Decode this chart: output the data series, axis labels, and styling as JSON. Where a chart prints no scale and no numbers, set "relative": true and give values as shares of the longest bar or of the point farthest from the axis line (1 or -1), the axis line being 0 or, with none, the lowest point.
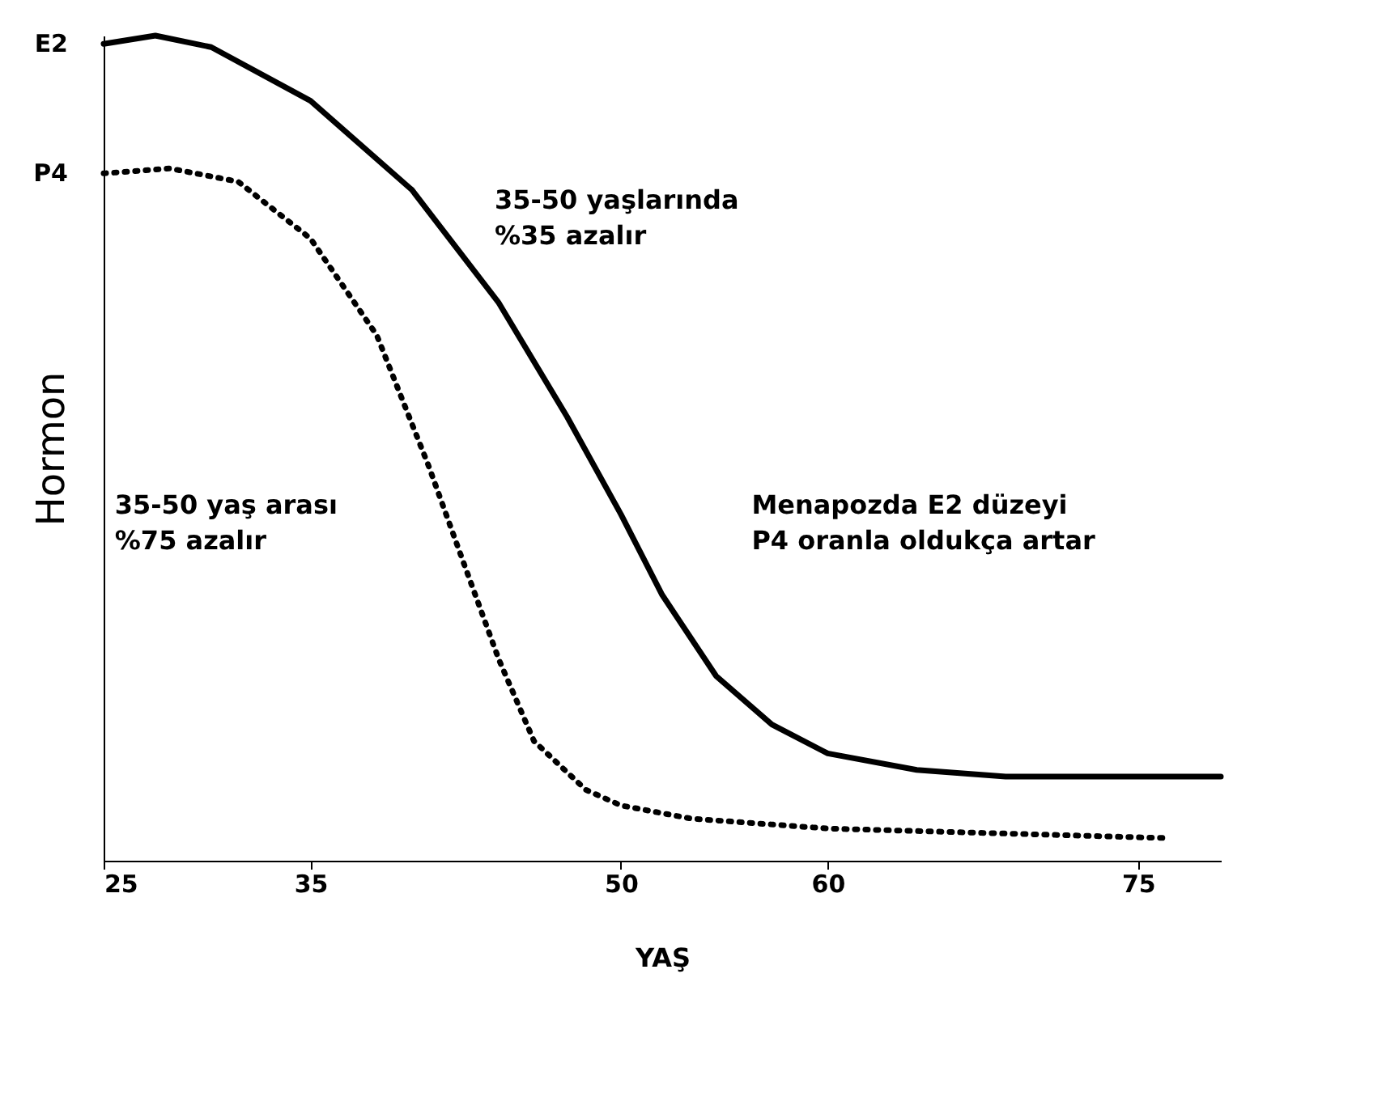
{
  "chart_data": {
    "type": "line",
    "xlabel": "YAŞ",
    "ylabel": "Hormon",
    "relative": true,
    "tick_labels": "x",
    "grid": false,
    "legend": false,
    "marker": "none",
    "xlim": [
      25,
      79
    ],
    "xticks": [
      25,
      35,
      50,
      60,
      75
    ],
    "series": [
      {
        "name": "E2",
        "color": "#000000",
        "line_style": "solid",
        "x": [
          25,
          27.5,
          30.2,
          35,
          39.9,
          44.1,
          47.4,
          50,
          52,
          54.6,
          57.3,
          60,
          64.3,
          68.6,
          79
        ],
        "values": [
          0.99,
          1,
          0.986,
          0.921,
          0.813,
          0.676,
          0.538,
          0.42,
          0.322,
          0.224,
          0.165,
          0.13,
          0.11,
          0.102,
          0.102
        ]
      },
      {
        "name": "P4",
        "color": "#000000",
        "line_style": "dotted",
        "x": [
          25,
          28.2,
          31.5,
          35,
          38.2,
          40.7,
          42.4,
          44.1,
          45.8,
          48.3,
          50,
          53.4,
          60,
          76.3
        ],
        "values": [
          0.833,
          0.839,
          0.823,
          0.754,
          0.637,
          0.479,
          0.361,
          0.244,
          0.145,
          0.086,
          0.067,
          0.051,
          0.039,
          0.0275
        ]
      }
    ],
    "annotations": [
      "35-50 yaşlarında\n%35 azalır",
      "35-50 yaş arası\n%75 azalır",
      "Menapozda E2 düzeyi\nP4 oranla oldukça artar"
    ]
  }
}
